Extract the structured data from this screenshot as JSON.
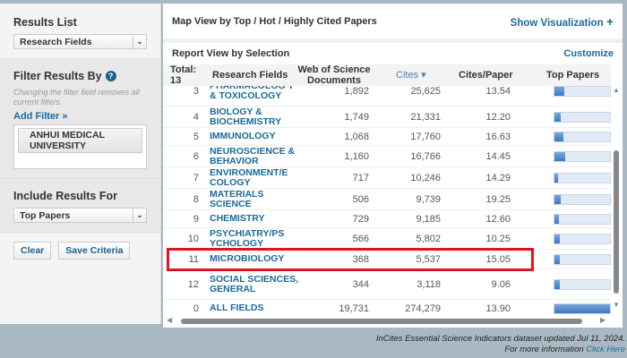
{
  "left": {
    "results_list_label": "Results List",
    "results_list_value": "Research Fields",
    "filter_label": "Filter Results By",
    "filter_note": "Changing the filter field removes all current filters.",
    "add_filter": "Add Filter »",
    "filter_chip": "ANHUI MEDICAL UNIVERSITY",
    "include_label": "Include Results For",
    "include_value": "Top Papers",
    "clear": "Clear",
    "save": "Save Criteria"
  },
  "main": {
    "map_title": "Map View by Top / Hot / Highly Cited Papers",
    "show_vis": "Show Visualization",
    "report_title": "Report View by Selection",
    "customize": "Customize",
    "columns": {
      "total": "Total: 13",
      "field": "Research Fields",
      "docs": "Web of Science Documents",
      "cites": "Cites ▾",
      "cpp": "Cites/Paper",
      "top": "Top Papers"
    },
    "rows": [
      {
        "n": "3",
        "field": "PHARMACOLOG Y & TOXICOLOGY",
        "docs": "1,892",
        "cites": "25,625",
        "cpp": "13.54",
        "top_fill": 0.17
      },
      {
        "n": "4",
        "field": "BIOLOGY & BIOCHEMISTRY",
        "docs": "1,749",
        "cites": "21,331",
        "cpp": "12.20",
        "top_fill": 0.12
      },
      {
        "n": "5",
        "field": "IMMUNOLOGY",
        "docs": "1,068",
        "cites": "17,760",
        "cpp": "16.63",
        "top_fill": 0.16
      },
      {
        "n": "6",
        "field": "NEUROSCIENCE & BEHAVIOR",
        "docs": "1,160",
        "cites": "16,766",
        "cpp": "14.45",
        "top_fill": 0.19
      },
      {
        "n": "7",
        "field": "ENVIRONMENT/E COLOGY",
        "docs": "717",
        "cites": "10,246",
        "cpp": "14.29",
        "top_fill": 0.06
      },
      {
        "n": "8",
        "field": "MATERIALS SCIENCE",
        "docs": "506",
        "cites": "9,739",
        "cpp": "19.25",
        "top_fill": 0.12
      },
      {
        "n": "9",
        "field": "CHEMISTRY",
        "docs": "729",
        "cites": "9,185",
        "cpp": "12.60",
        "top_fill": 0.08
      },
      {
        "n": "10",
        "field": "PSYCHIATRY/PS YCHOLOGY",
        "docs": "566",
        "cites": "5,802",
        "cpp": "10.25",
        "top_fill": 0.09
      },
      {
        "n": "11",
        "field": "MICROBIOLOGY",
        "docs": "368",
        "cites": "5,537",
        "cpp": "15.05",
        "top_fill": 0.09
      },
      {
        "n": "12",
        "field": "SOCIAL SCIENCES, GENERAL",
        "docs": "344",
        "cites": "3,118",
        "cpp": "9.06",
        "top_fill": 0.09
      },
      {
        "n": "0",
        "field": "ALL FIELDS",
        "docs": "19,731",
        "cites": "274,279",
        "cpp": "13.90",
        "top_fill": 1.0
      }
    ],
    "highlight_color": "#e0141e"
  },
  "footer": {
    "line1": "InCites Essential Science Indicators dataset updated Jul 11, 2024.",
    "line2": "For more information",
    "link": "Click Here"
  }
}
